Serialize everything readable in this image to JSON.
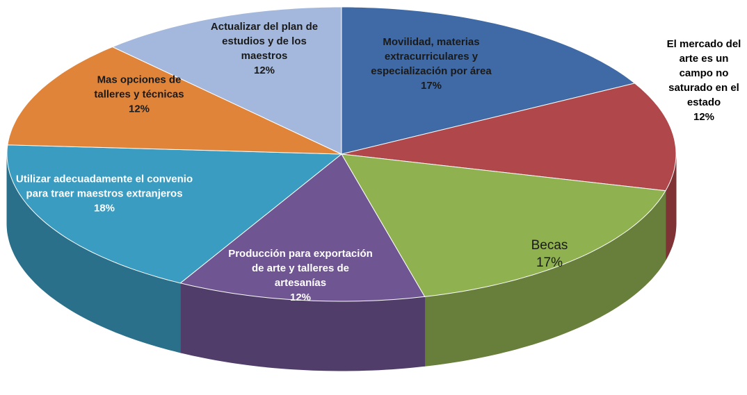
{
  "chart_data": {
    "type": "pie",
    "categories": [
      "Movilidad, materias extracurriculares y especialización por área",
      "El mercado del arte es un campo no saturado en el estado",
      "Becas",
      "Producción para exportación de arte y talleres de artesanías",
      "Utilizar adecuadamente el convenio para traer maestros extranjeros",
      "Mas opciones de talleres y técnicas",
      "Actualizar del plan de estudios y de los maestros"
    ],
    "values": [
      17,
      12,
      17,
      12,
      18,
      12,
      12
    ],
    "value_labels": [
      "17%",
      "12%",
      "17%",
      "12%",
      "18%",
      "12%",
      "12%"
    ],
    "colors": [
      "#3f6aa6",
      "#b0474a",
      "#8fb150",
      "#6f5592",
      "#3a9cc0",
      "#e0843a",
      "#a3b8dc"
    ]
  }
}
